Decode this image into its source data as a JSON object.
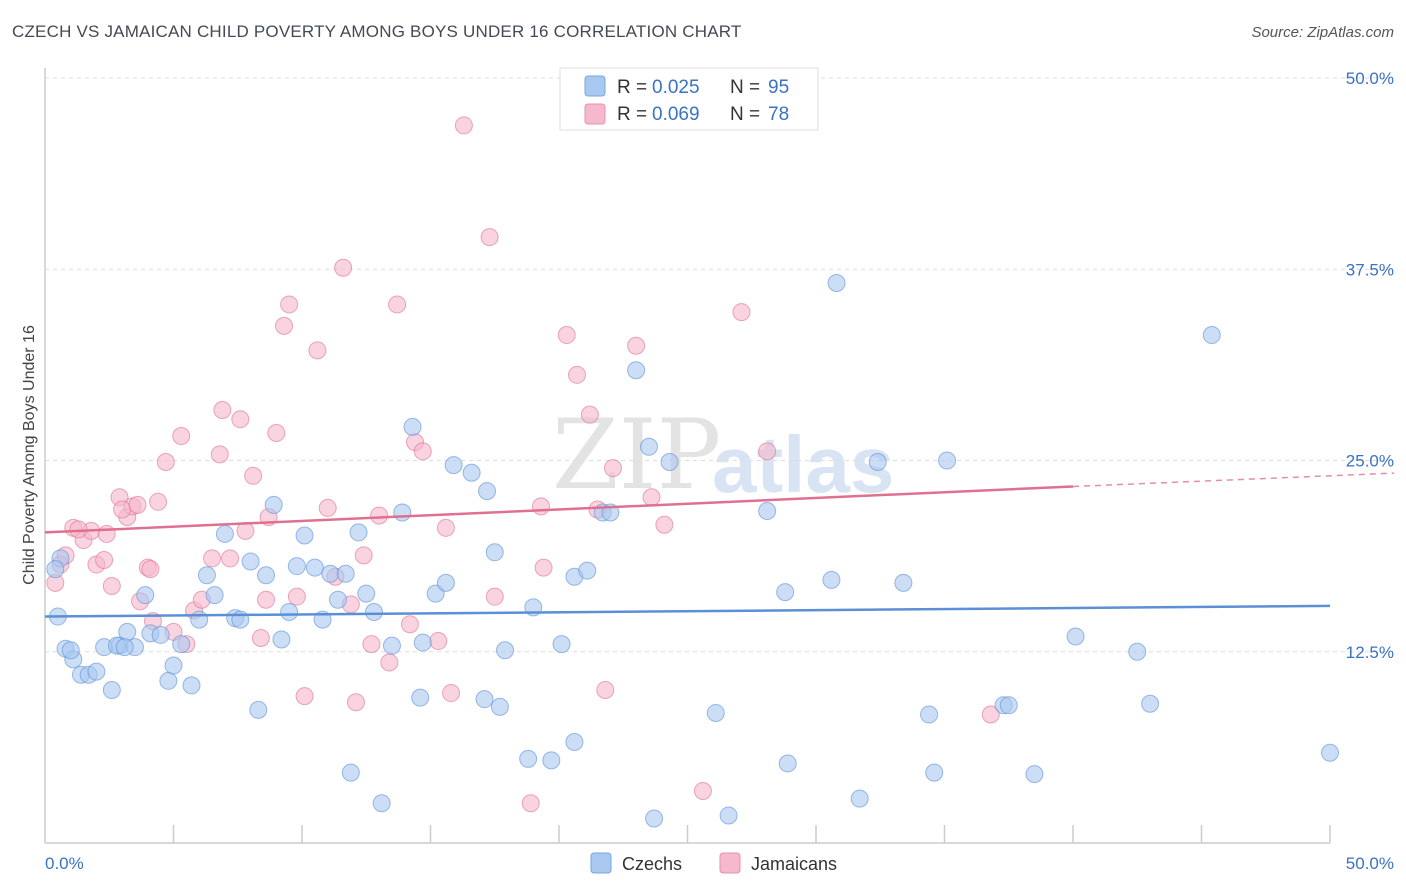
{
  "title": "CZECH VS JAMAICAN CHILD POVERTY AMONG BOYS UNDER 16 CORRELATION CHART",
  "source": "Source: ZipAtlas.com",
  "watermark": {
    "zip": "ZIP",
    "atlas": "atlas"
  },
  "legend_top": {
    "rows": [
      {
        "r_label": "R = ",
        "r_value": "0.025",
        "n_label": "N = ",
        "n_value": "95",
        "color": "#a8c8f0"
      },
      {
        "r_label": "R = ",
        "r_value": "0.069",
        "n_label": "N = ",
        "n_value": "78",
        "color": "#f5b8cc"
      }
    ]
  },
  "legend_bottom": [
    {
      "label": "Czechs",
      "color": "#a8c8f0"
    },
    {
      "label": "Jamaicans",
      "color": "#f5b8cc"
    }
  ],
  "chart_data": {
    "type": "scatter",
    "title": "CZECH VS JAMAICAN CHILD POVERTY AMONG BOYS UNDER 16 CORRELATION CHART",
    "xlabel": "",
    "ylabel": "Child Poverty Among Boys Under 16",
    "xlim": [
      0,
      50
    ],
    "ylim": [
      0,
      50
    ],
    "x_tick_labels": [
      "0.0%",
      "50.0%"
    ],
    "y_ticks": [
      12.5,
      25.0,
      37.5,
      50.0
    ],
    "y_tick_labels": [
      "12.5%",
      "25.0%",
      "37.5%",
      "50.0%"
    ],
    "grid": true,
    "series": [
      {
        "name": "Czechs",
        "color": "#5b8fd6",
        "fill": "#a8c8f0",
        "trend": {
          "x0": 0,
          "y0": 14.8,
          "x1": 50,
          "y1": 15.5
        },
        "points": [
          [
            0.5,
            14.8
          ],
          [
            0.8,
            12.7
          ],
          [
            1.1,
            12.0
          ],
          [
            1.4,
            11.0
          ],
          [
            1.7,
            11.0
          ],
          [
            2.0,
            11.2
          ],
          [
            2.3,
            12.8
          ],
          [
            2.6,
            10.0
          ],
          [
            2.9,
            12.9
          ],
          [
            3.2,
            13.8
          ],
          [
            3.5,
            12.8
          ],
          [
            3.9,
            16.2
          ],
          [
            4.1,
            13.7
          ],
          [
            4.5,
            13.6
          ],
          [
            4.8,
            10.6
          ],
          [
            5.0,
            11.6
          ],
          [
            5.3,
            13.0
          ],
          [
            5.7,
            10.3
          ],
          [
            6.0,
            14.6
          ],
          [
            6.3,
            17.5
          ],
          [
            6.6,
            16.2
          ],
          [
            7.0,
            20.2
          ],
          [
            7.4,
            14.7
          ],
          [
            7.6,
            14.6
          ],
          [
            8.0,
            18.4
          ],
          [
            8.3,
            8.7
          ],
          [
            8.6,
            17.5
          ],
          [
            8.9,
            22.1
          ],
          [
            9.2,
            13.3
          ],
          [
            9.5,
            15.1
          ],
          [
            9.8,
            18.1
          ],
          [
            10.1,
            20.1
          ],
          [
            10.5,
            18.0
          ],
          [
            10.8,
            14.6
          ],
          [
            11.1,
            17.6
          ],
          [
            11.4,
            15.9
          ],
          [
            11.7,
            17.6
          ],
          [
            11.9,
            4.6
          ],
          [
            12.2,
            20.3
          ],
          [
            12.5,
            16.3
          ],
          [
            12.8,
            15.1
          ],
          [
            13.1,
            2.6
          ],
          [
            13.5,
            12.9
          ],
          [
            13.9,
            21.6
          ],
          [
            14.3,
            27.2
          ],
          [
            14.6,
            9.5
          ],
          [
            14.7,
            13.1
          ],
          [
            15.2,
            16.3
          ],
          [
            15.6,
            17.0
          ],
          [
            15.9,
            24.7
          ],
          [
            16.6,
            24.2
          ],
          [
            17.1,
            9.4
          ],
          [
            17.2,
            23.0
          ],
          [
            17.5,
            19.0
          ],
          [
            17.7,
            8.9
          ],
          [
            17.9,
            12.6
          ],
          [
            18.8,
            5.5
          ],
          [
            19.0,
            15.4
          ],
          [
            19.7,
            5.4
          ],
          [
            20.1,
            13.0
          ],
          [
            20.6,
            17.4
          ],
          [
            20.6,
            6.6
          ],
          [
            21.1,
            17.8
          ],
          [
            21.7,
            21.6
          ],
          [
            22.0,
            21.6
          ],
          [
            23.0,
            30.9
          ],
          [
            23.5,
            25.9
          ],
          [
            23.7,
            1.6
          ],
          [
            24.3,
            24.9
          ],
          [
            26.1,
            8.5
          ],
          [
            26.6,
            1.8
          ],
          [
            28.1,
            21.7
          ],
          [
            28.8,
            16.4
          ],
          [
            28.9,
            5.2
          ],
          [
            30.6,
            17.2
          ],
          [
            30.8,
            36.6
          ],
          [
            31.7,
            2.9
          ],
          [
            32.4,
            24.9
          ],
          [
            33.4,
            17.0
          ],
          [
            34.4,
            8.4
          ],
          [
            34.6,
            4.6
          ],
          [
            35.1,
            25.0
          ],
          [
            37.3,
            9.0
          ],
          [
            37.5,
            9.0
          ],
          [
            38.5,
            4.5
          ],
          [
            40.1,
            13.5
          ],
          [
            42.5,
            12.5
          ],
          [
            43.0,
            9.1
          ],
          [
            45.4,
            33.2
          ],
          [
            50.0,
            5.9
          ],
          [
            0.6,
            18.6
          ],
          [
            0.4,
            17.9
          ],
          [
            1.0,
            12.6
          ],
          [
            2.8,
            12.9
          ],
          [
            3.1,
            12.8
          ]
        ]
      },
      {
        "name": "Jamaicans",
        "color": "#e0708f",
        "fill": "#f5b8cc",
        "trend": {
          "x0": 0,
          "y0": 20.3,
          "x1": 40,
          "y1": 23.3,
          "dash_to_x": 50,
          "dash_to_y": 24.0
        },
        "points": [
          [
            0.4,
            17.0
          ],
          [
            0.6,
            18.2
          ],
          [
            1.1,
            20.6
          ],
          [
            1.5,
            19.8
          ],
          [
            1.8,
            20.4
          ],
          [
            2.0,
            18.2
          ],
          [
            2.3,
            18.5
          ],
          [
            2.6,
            16.8
          ],
          [
            2.9,
            22.6
          ],
          [
            3.2,
            21.3
          ],
          [
            3.4,
            22.0
          ],
          [
            3.7,
            15.8
          ],
          [
            4.0,
            18.0
          ],
          [
            4.2,
            14.5
          ],
          [
            4.4,
            22.3
          ],
          [
            4.7,
            24.9
          ],
          [
            5.0,
            13.8
          ],
          [
            5.3,
            26.6
          ],
          [
            5.5,
            13.0
          ],
          [
            5.8,
            15.2
          ],
          [
            6.1,
            15.9
          ],
          [
            6.5,
            18.6
          ],
          [
            6.8,
            25.4
          ],
          [
            6.9,
            28.3
          ],
          [
            7.2,
            18.6
          ],
          [
            7.6,
            27.7
          ],
          [
            7.8,
            20.4
          ],
          [
            8.1,
            24.0
          ],
          [
            8.4,
            13.4
          ],
          [
            8.6,
            15.9
          ],
          [
            8.7,
            21.3
          ],
          [
            9.0,
            26.8
          ],
          [
            9.3,
            33.8
          ],
          [
            9.5,
            35.2
          ],
          [
            9.8,
            16.1
          ],
          [
            10.1,
            9.6
          ],
          [
            10.6,
            32.2
          ],
          [
            11.0,
            21.9
          ],
          [
            11.3,
            17.4
          ],
          [
            11.6,
            37.6
          ],
          [
            11.9,
            15.6
          ],
          [
            12.1,
            9.2
          ],
          [
            12.4,
            18.8
          ],
          [
            12.7,
            13.0
          ],
          [
            13.0,
            21.4
          ],
          [
            13.4,
            11.8
          ],
          [
            13.7,
            35.2
          ],
          [
            14.2,
            14.3
          ],
          [
            14.4,
            26.2
          ],
          [
            14.7,
            25.6
          ],
          [
            15.3,
            13.2
          ],
          [
            15.6,
            20.6
          ],
          [
            15.8,
            9.8
          ],
          [
            16.3,
            46.9
          ],
          [
            17.3,
            39.6
          ],
          [
            17.5,
            16.1
          ],
          [
            18.9,
            2.6
          ],
          [
            19.3,
            22.0
          ],
          [
            19.4,
            18.0
          ],
          [
            20.3,
            33.2
          ],
          [
            20.7,
            30.6
          ],
          [
            21.2,
            28.0
          ],
          [
            21.5,
            21.8
          ],
          [
            21.8,
            10.0
          ],
          [
            22.1,
            24.5
          ],
          [
            23.0,
            32.5
          ],
          [
            23.6,
            22.6
          ],
          [
            24.1,
            20.8
          ],
          [
            25.6,
            3.4
          ],
          [
            27.1,
            34.7
          ],
          [
            28.1,
            25.6
          ],
          [
            36.8,
            8.4
          ],
          [
            0.8,
            18.8
          ],
          [
            1.3,
            20.5
          ],
          [
            2.4,
            20.2
          ],
          [
            3.0,
            21.8
          ],
          [
            3.6,
            22.1
          ],
          [
            4.1,
            17.9
          ]
        ]
      }
    ]
  }
}
